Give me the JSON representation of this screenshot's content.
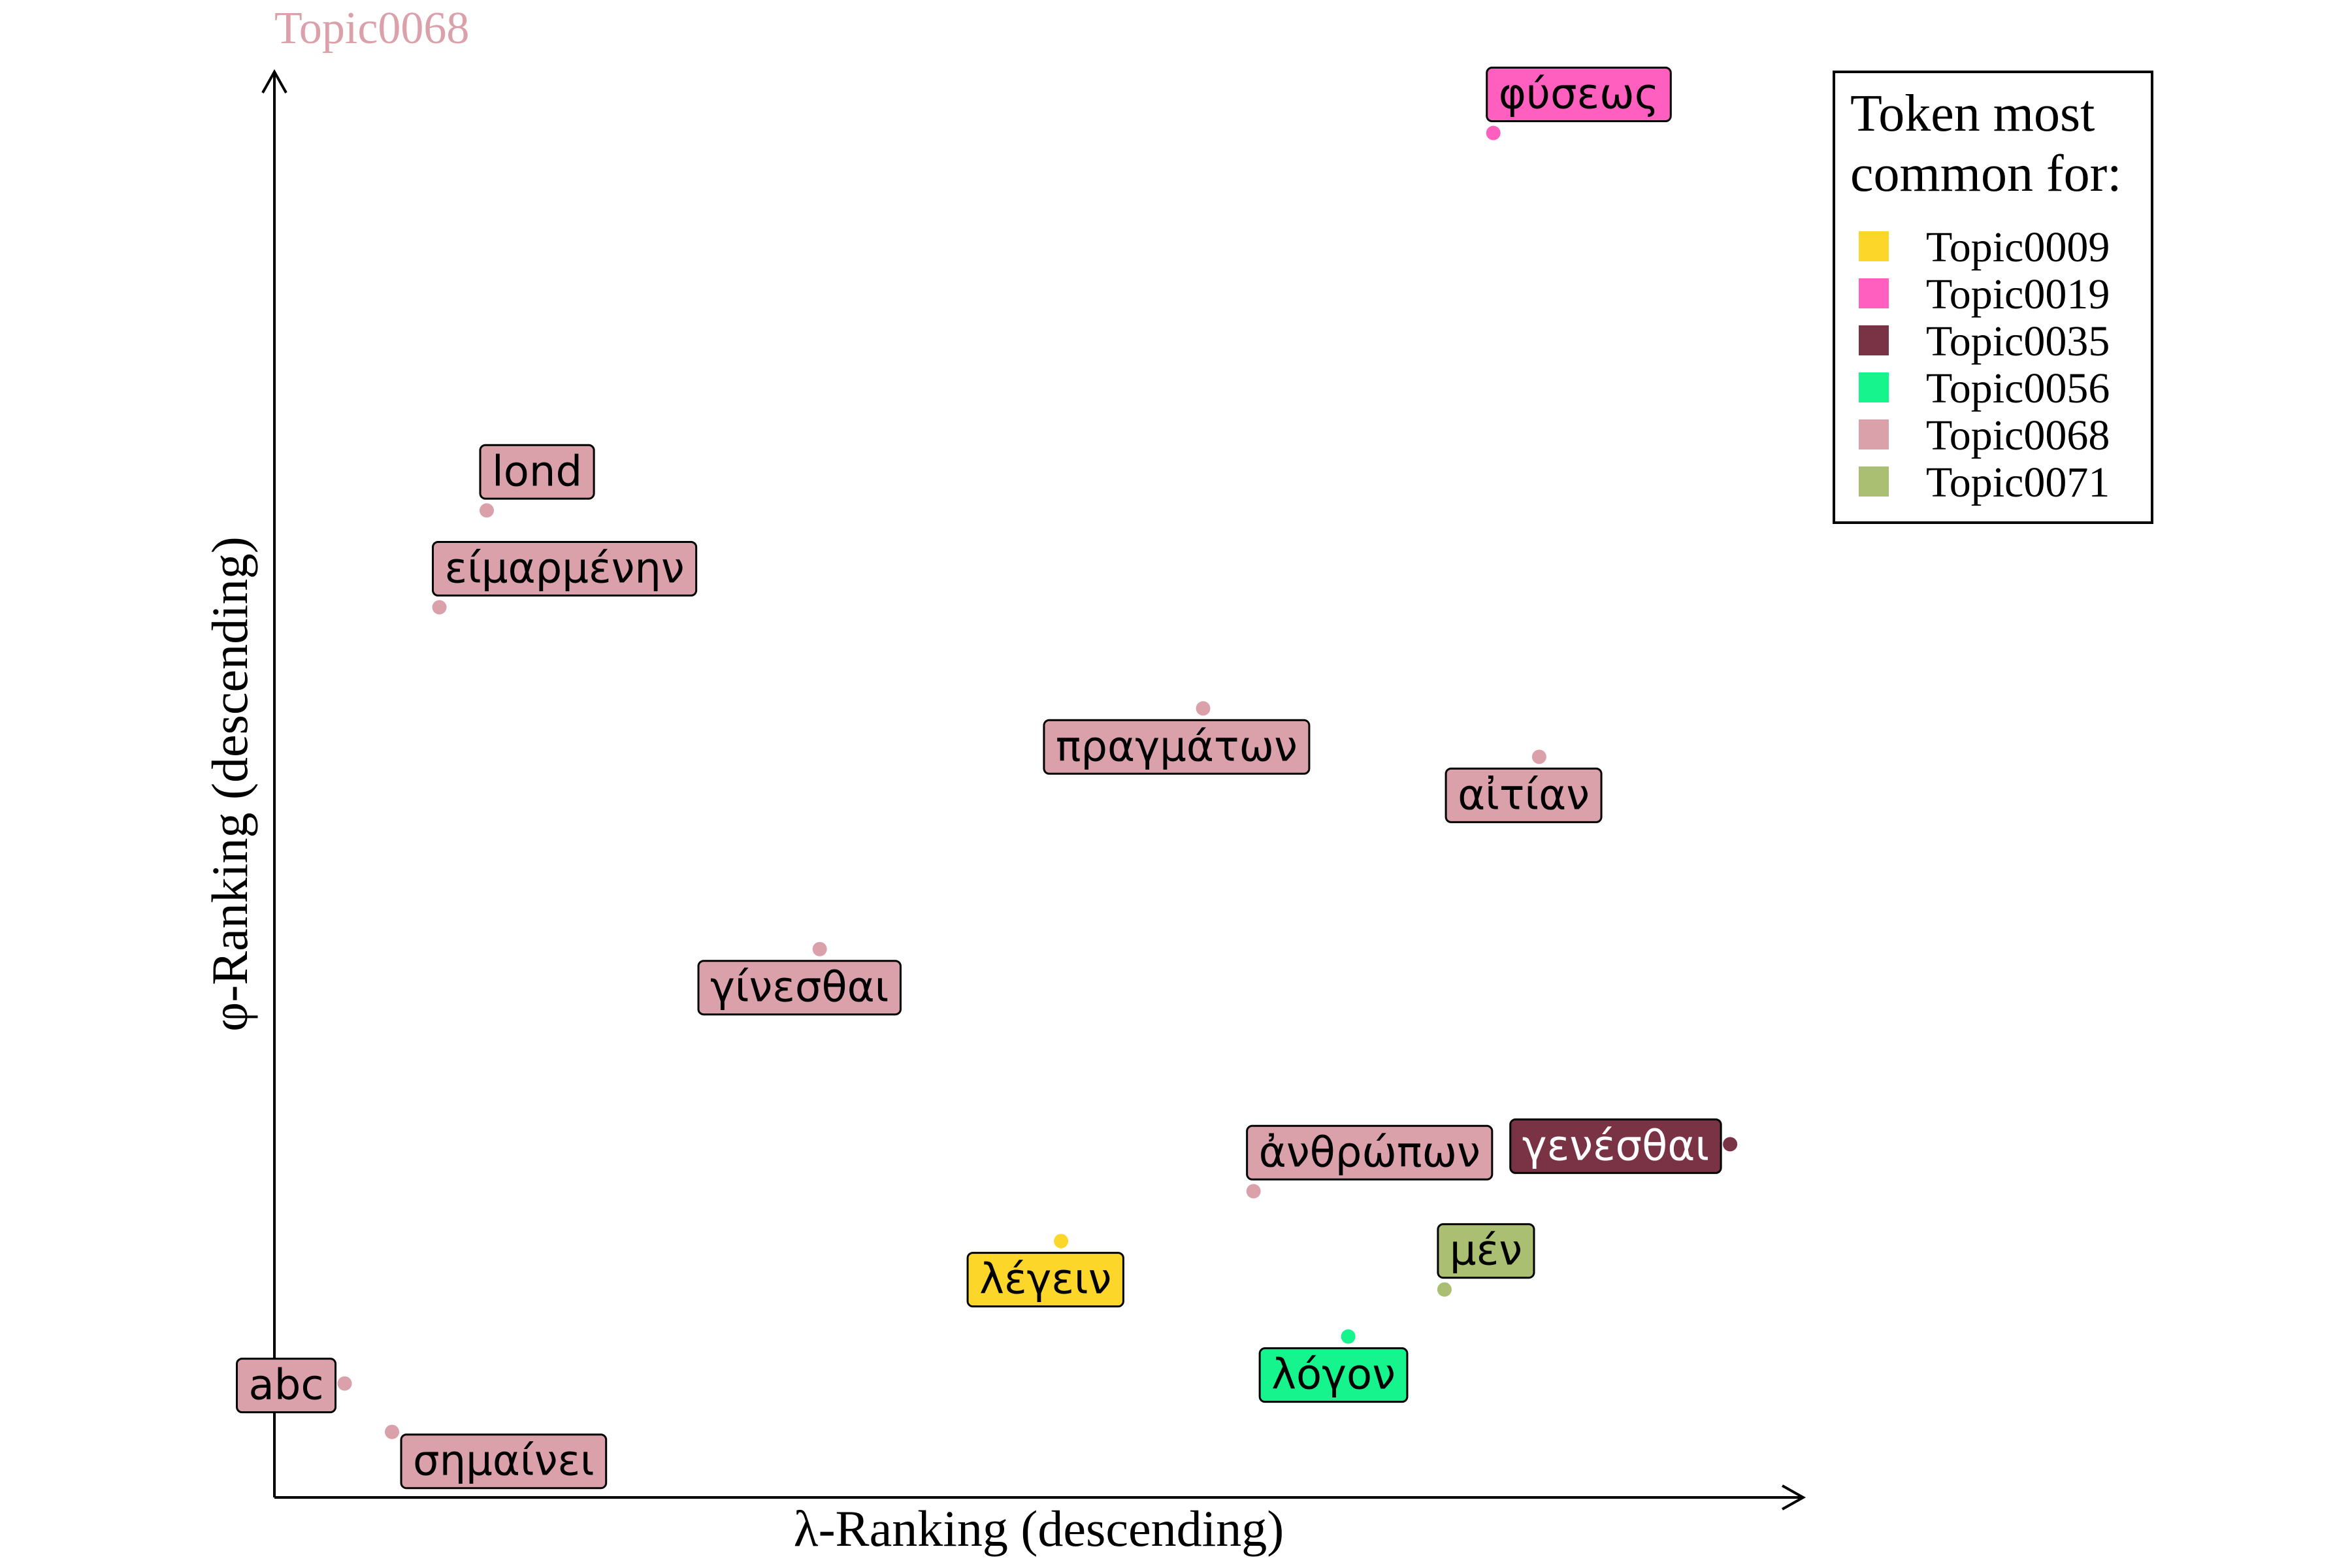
{
  "chart_data": {
    "type": "scatter",
    "title": "Topic0068",
    "title_color": "#DBA1AB",
    "xlabel": "λ-Ranking (descending)",
    "ylabel": "φ-Ranking (descending)",
    "xlim": [
      0,
      1
    ],
    "ylim": [
      0,
      1
    ],
    "grid": false,
    "legend_position": "top-right",
    "legend": {
      "title_lines": [
        "Token most",
        "common for:"
      ],
      "entries": [
        {
          "label": "Topic0009",
          "color": "#FDD62A"
        },
        {
          "label": "Topic0019",
          "color": "#FF60BF"
        },
        {
          "label": "Topic0035",
          "color": "#7A3245"
        },
        {
          "label": "Topic0056",
          "color": "#16F48D"
        },
        {
          "label": "Topic0068",
          "color": "#DBA1AB"
        },
        {
          "label": "Topic0071",
          "color": "#AABF72"
        }
      ]
    },
    "points": [
      {
        "token": "φύσεως",
        "x": 0.798,
        "y": 0.958,
        "topic": "Topic0019",
        "label_side": "above-right"
      },
      {
        "token": "lond",
        "x": 0.139,
        "y": 0.693,
        "topic": "Topic0068",
        "label_side": "above-right"
      },
      {
        "token": "είμαρμένην",
        "x": 0.108,
        "y": 0.625,
        "topic": "Topic0068",
        "label_side": "above-right"
      },
      {
        "token": "πραγμάτων",
        "x": 0.608,
        "y": 0.554,
        "topic": "Topic0068",
        "label_side": "below-left"
      },
      {
        "token": "αἰτίαν",
        "x": 0.828,
        "y": 0.52,
        "topic": "Topic0068",
        "label_side": "below-left"
      },
      {
        "token": "γίνεσθαι",
        "x": 0.357,
        "y": 0.385,
        "topic": "Topic0068",
        "label_side": "below-left"
      },
      {
        "token": "γενέσθαι",
        "x": 0.953,
        "y": 0.248,
        "topic": "Topic0035",
        "label_side": "above-left"
      },
      {
        "token": "ἀνθρώπων",
        "x": 0.641,
        "y": 0.215,
        "topic": "Topic0068",
        "label_side": "above-right"
      },
      {
        "token": "λέγειν",
        "x": 0.515,
        "y": 0.18,
        "topic": "Topic0009",
        "label_side": "below-left"
      },
      {
        "token": "μέν",
        "x": 0.766,
        "y": 0.146,
        "topic": "Topic0071",
        "label_side": "above-right"
      },
      {
        "token": "λόγον",
        "x": 0.703,
        "y": 0.113,
        "topic": "Topic0056",
        "label_side": "below-left"
      },
      {
        "token": "abc",
        "x": 0.046,
        "y": 0.08,
        "topic": "Topic0068",
        "label_side": "above-left"
      },
      {
        "token": "σημαίνει",
        "x": 0.077,
        "y": 0.046,
        "topic": "Topic0068",
        "label_side": "below-right"
      }
    ]
  }
}
